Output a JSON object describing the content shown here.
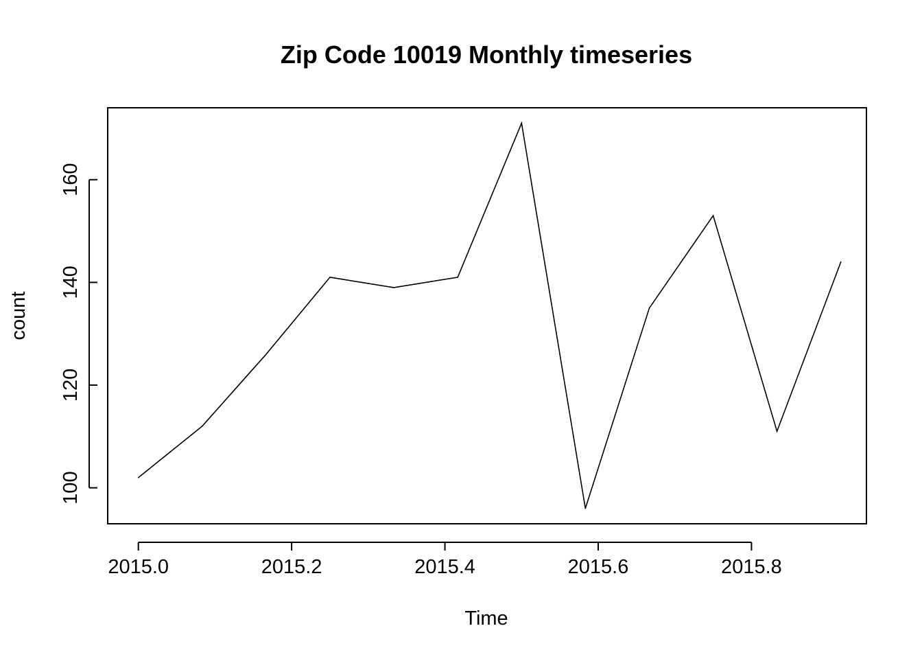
{
  "chart_data": {
    "type": "line",
    "title": "Zip Code 10019 Monthly timeseries",
    "xlabel": "Time",
    "ylabel": "count",
    "x_ticks": [
      "2015.0",
      "2015.2",
      "2015.4",
      "2015.6",
      "2015.8"
    ],
    "x_tick_values": [
      2015.0,
      2015.2,
      2015.4,
      2015.6,
      2015.8
    ],
    "y_ticks": [
      "100",
      "120",
      "140",
      "160"
    ],
    "y_tick_values": [
      100,
      120,
      140,
      160
    ],
    "xlim": [
      2014.96,
      2015.95
    ],
    "ylim": [
      93,
      174
    ],
    "grid": false,
    "series": [
      {
        "x": [
          2015.0,
          2015.0833,
          2015.1667,
          2015.25,
          2015.3333,
          2015.4167,
          2015.5,
          2015.5833,
          2015.6667,
          2015.75,
          2015.8333,
          2015.9167
        ],
        "values": [
          102,
          112,
          126,
          141,
          139,
          141,
          171,
          96,
          135,
          153,
          111,
          144
        ]
      }
    ]
  }
}
